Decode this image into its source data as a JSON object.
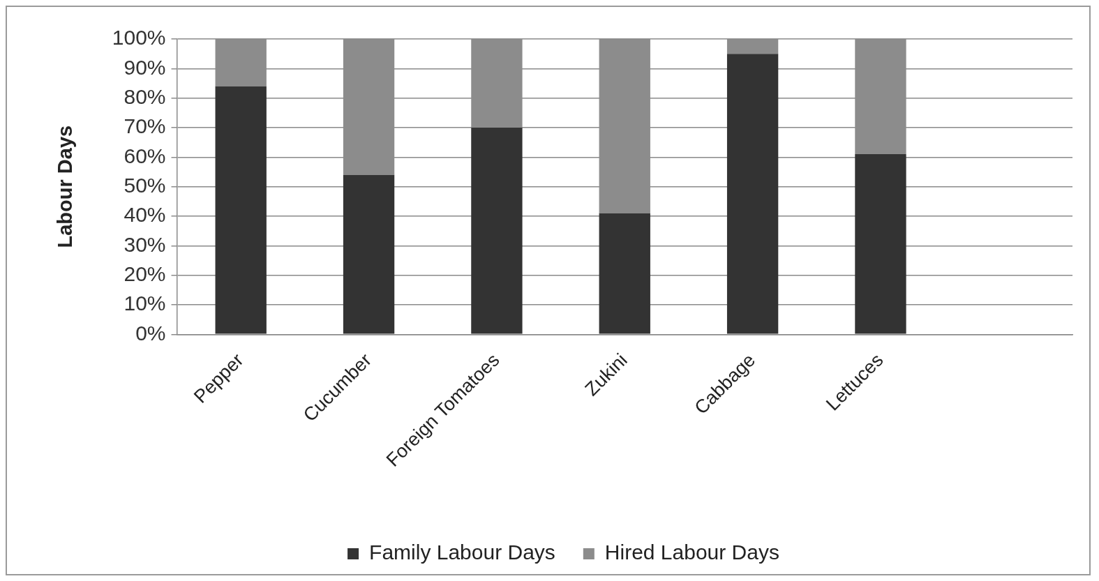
{
  "chart_data": {
    "type": "bar",
    "stacked": true,
    "ylabel": "Labour Days",
    "categories": [
      "Pepper",
      "Cucumber",
      "Foreign Tomatoes",
      "Zukini",
      "Cabbage",
      "Lettuces",
      null
    ],
    "series": [
      {
        "name": "Family Labour Days",
        "color": "#333333",
        "values": [
          84,
          54,
          70,
          41,
          95,
          61,
          null
        ]
      },
      {
        "name": "Hired Labour Days",
        "color": "#8c8c8c",
        "values": [
          16,
          46,
          30,
          59,
          5,
          39,
          null
        ]
      }
    ],
    "ylim": [
      0,
      100
    ],
    "yticks": [
      {
        "value": 0,
        "label": "0%"
      },
      {
        "value": 10,
        "label": "10%"
      },
      {
        "value": 20,
        "label": "20%"
      },
      {
        "value": 30,
        "label": "30%"
      },
      {
        "value": 40,
        "label": "40%"
      },
      {
        "value": 50,
        "label": "50%"
      },
      {
        "value": 60,
        "label": "60%"
      },
      {
        "value": 70,
        "label": "70%"
      },
      {
        "value": 80,
        "label": "80%"
      },
      {
        "value": 90,
        "label": "90%"
      },
      {
        "value": 100,
        "label": "100%"
      }
    ],
    "grid": "y",
    "legend": "bottom"
  }
}
